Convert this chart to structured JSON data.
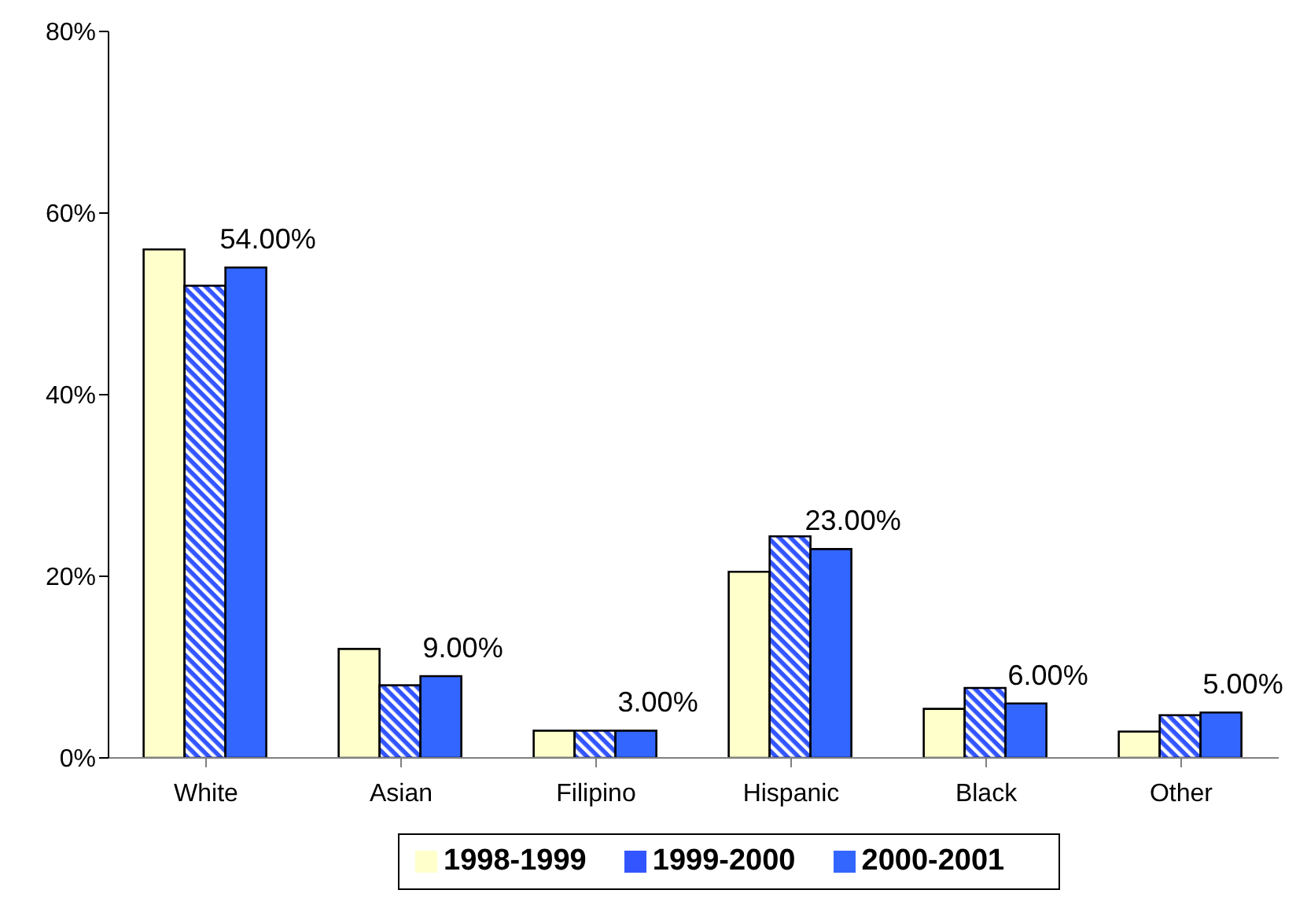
{
  "chart_data": {
    "type": "bar",
    "categories": [
      "White",
      "Asian",
      "Filipino",
      "Hispanic",
      "Black",
      "Other"
    ],
    "series": [
      {
        "name": "1998-1999",
        "color": "#ffffcc",
        "values": [
          56,
          12,
          3,
          20.5,
          5.4,
          2.9
        ]
      },
      {
        "name": "1999-2000",
        "color": "#3355ff",
        "values": [
          52,
          8,
          3,
          24.4,
          7.7,
          4.7
        ]
      },
      {
        "name": "2000-2001",
        "color": "#3366ff",
        "values": [
          54,
          9,
          3,
          23,
          6,
          5
        ],
        "value_labels": [
          "54.00%",
          "9.00%",
          "3.00%",
          "23.00%",
          "6.00%",
          "5.00%"
        ]
      }
    ],
    "ylim": [
      0,
      80
    ],
    "yticks": [
      {
        "value": 0,
        "label": "0%"
      },
      {
        "value": 20,
        "label": "20%"
      },
      {
        "value": 40,
        "label": "40%"
      },
      {
        "value": 60,
        "label": "60%"
      },
      {
        "value": 80,
        "label": "80%"
      }
    ],
    "grid": false,
    "legend": "bottom"
  }
}
